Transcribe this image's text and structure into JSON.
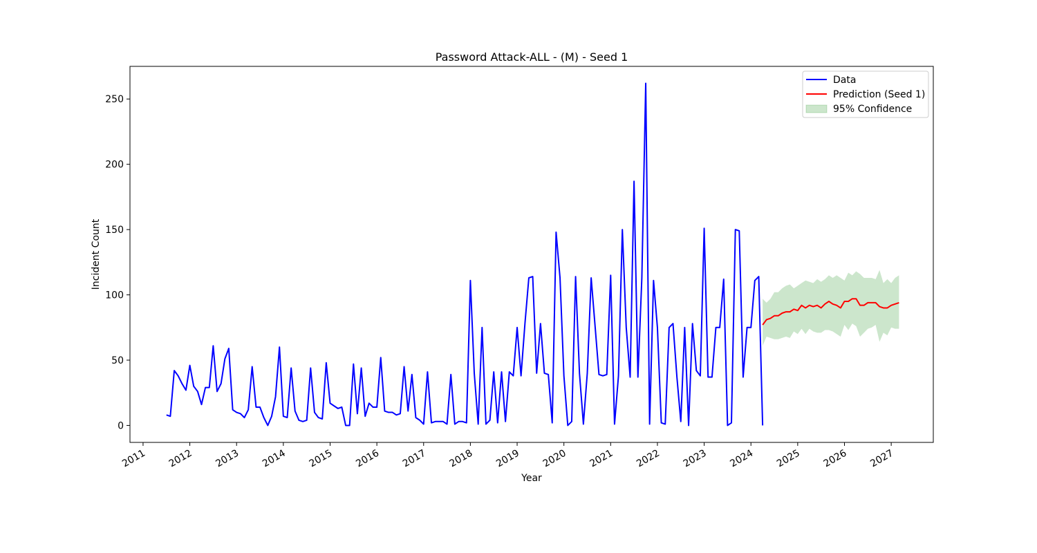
{
  "chart_data": {
    "type": "line",
    "title": "Password Attack-ALL - (M) - Seed 1",
    "xlabel": "Year",
    "ylabel": "Incident Count",
    "xlim": [
      2010.72,
      2027.9
    ],
    "ylim": [
      -13,
      275
    ],
    "xticks": [
      2011,
      2012,
      2013,
      2014,
      2015,
      2016,
      2017,
      2018,
      2019,
      2020,
      2021,
      2022,
      2023,
      2024,
      2025,
      2026,
      2027
    ],
    "yticks": [
      0,
      50,
      100,
      150,
      200,
      250
    ],
    "legend": "upper right",
    "series": [
      {
        "name": "Data",
        "color": "#0000ff",
        "x": [
          2011.5,
          2011.583,
          2011.667,
          2011.75,
          2011.833,
          2011.917,
          2012,
          2012.083,
          2012.167,
          2012.25,
          2012.333,
          2012.417,
          2012.5,
          2012.583,
          2012.667,
          2012.75,
          2012.833,
          2012.917,
          2013,
          2013.083,
          2013.167,
          2013.25,
          2013.333,
          2013.417,
          2013.5,
          2013.583,
          2013.667,
          2013.75,
          2013.833,
          2013.917,
          2014,
          2014.083,
          2014.167,
          2014.25,
          2014.333,
          2014.417,
          2014.5,
          2014.583,
          2014.667,
          2014.75,
          2014.833,
          2014.917,
          2015,
          2015.083,
          2015.167,
          2015.25,
          2015.333,
          2015.417,
          2015.5,
          2015.583,
          2015.667,
          2015.75,
          2015.833,
          2015.917,
          2016,
          2016.083,
          2016.167,
          2016.25,
          2016.333,
          2016.417,
          2016.5,
          2016.583,
          2016.667,
          2016.75,
          2016.833,
          2016.917,
          2017,
          2017.083,
          2017.167,
          2017.25,
          2017.333,
          2017.417,
          2017.5,
          2017.583,
          2017.667,
          2017.75,
          2017.833,
          2017.917,
          2018,
          2018.083,
          2018.167,
          2018.25,
          2018.333,
          2018.417,
          2018.5,
          2018.583,
          2018.667,
          2018.75,
          2018.833,
          2018.917,
          2019,
          2019.083,
          2019.167,
          2019.25,
          2019.333,
          2019.417,
          2019.5,
          2019.583,
          2019.667,
          2019.75,
          2019.833,
          2019.917,
          2020,
          2020.083,
          2020.167,
          2020.25,
          2020.333,
          2020.417,
          2020.5,
          2020.583,
          2020.667,
          2020.75,
          2020.833,
          2020.917,
          2021,
          2021.083,
          2021.167,
          2021.25,
          2021.333,
          2021.417,
          2021.5,
          2021.583,
          2021.667,
          2021.75,
          2021.833,
          2021.917,
          2022,
          2022.083,
          2022.167,
          2022.25,
          2022.333,
          2022.417,
          2022.5,
          2022.583,
          2022.667,
          2022.75,
          2022.833,
          2022.917,
          2023,
          2023.083,
          2023.167,
          2023.25,
          2023.333,
          2023.417,
          2023.5,
          2023.583,
          2023.667,
          2023.75,
          2023.833,
          2023.917,
          2024,
          2024.083,
          2024.167,
          2024.25
        ],
        "values": [
          8,
          7,
          42,
          38,
          32,
          27,
          46,
          30,
          26,
          16,
          29,
          29,
          61,
          26,
          32,
          51,
          59,
          12,
          10,
          9,
          6,
          12,
          45,
          14,
          14,
          6,
          0,
          7,
          22,
          60,
          7,
          6,
          44,
          11,
          4,
          3,
          4,
          44,
          10,
          6,
          5,
          48,
          17,
          15,
          13,
          14,
          0,
          0,
          47,
          9,
          44,
          7,
          17,
          14,
          14,
          52,
          11,
          10,
          10,
          8,
          9,
          45,
          11,
          39,
          6,
          4,
          1,
          41,
          2,
          3,
          3,
          3,
          1,
          39,
          1,
          3,
          3,
          2,
          111,
          40,
          1,
          75,
          1,
          4,
          41,
          2,
          41,
          3,
          41,
          38,
          75,
          38,
          78,
          113,
          114,
          40,
          78,
          40,
          39,
          2,
          148,
          113,
          38,
          0,
          3,
          114,
          40,
          1,
          40,
          113,
          76,
          39,
          38,
          39,
          115,
          1,
          38,
          150,
          75,
          37,
          187,
          37,
          113,
          262,
          1,
          111,
          75,
          2,
          1,
          75,
          78,
          37,
          3,
          75,
          0,
          78,
          42,
          38,
          151,
          37,
          37,
          75,
          75,
          112,
          0,
          2,
          150,
          149,
          37,
          75,
          75,
          111,
          114,
          0
        ]
      },
      {
        "name": "Prediction (Seed 1)",
        "color": "#ff0000",
        "x": [
          2024.25,
          2024.333,
          2024.417,
          2024.5,
          2024.583,
          2024.667,
          2024.75,
          2024.833,
          2024.917,
          2025,
          2025.083,
          2025.167,
          2025.25,
          2025.333,
          2025.417,
          2025.5,
          2025.583,
          2025.667,
          2025.75,
          2025.833,
          2025.917,
          2026,
          2026.083,
          2026.167,
          2026.25,
          2026.333,
          2026.417,
          2026.5,
          2026.583,
          2026.667,
          2026.75,
          2026.833,
          2026.917,
          2027,
          2027.083,
          2027.167
        ],
        "values": [
          77,
          81,
          82,
          84,
          84,
          86,
          87,
          87,
          89,
          88,
          92,
          90,
          92,
          91,
          92,
          90,
          93,
          95,
          93,
          92,
          90,
          95,
          95,
          97,
          97,
          92,
          92,
          94,
          94,
          94,
          91,
          90,
          90,
          92,
          93,
          94
        ]
      },
      {
        "name": "95% Confidence",
        "color": "#008000",
        "opacity": 0.2,
        "band": true,
        "x": [
          2024.25,
          2024.333,
          2024.417,
          2024.5,
          2024.583,
          2024.667,
          2024.75,
          2024.833,
          2024.917,
          2025,
          2025.083,
          2025.167,
          2025.25,
          2025.333,
          2025.417,
          2025.5,
          2025.583,
          2025.667,
          2025.75,
          2025.833,
          2025.917,
          2026,
          2026.083,
          2026.167,
          2026.25,
          2026.333,
          2026.417,
          2026.5,
          2026.583,
          2026.667,
          2026.75,
          2026.833,
          2026.917,
          2027,
          2027.083,
          2027.167
        ],
        "upper": [
          97,
          94,
          97,
          102,
          102,
          105,
          107,
          108,
          105,
          107,
          109,
          111,
          110,
          109,
          112,
          110,
          112,
          115,
          113,
          115,
          113,
          111,
          117,
          115,
          118,
          116,
          113,
          113,
          113,
          112,
          119,
          109,
          112,
          109,
          113,
          115
        ],
        "lower": [
          61,
          68,
          67,
          66,
          66,
          67,
          68,
          67,
          72,
          70,
          74,
          70,
          74,
          72,
          71,
          71,
          73,
          73,
          72,
          70,
          68,
          77,
          73,
          78,
          76,
          68,
          71,
          74,
          75,
          77,
          64,
          71,
          69,
          75,
          74,
          74
        ]
      }
    ]
  }
}
